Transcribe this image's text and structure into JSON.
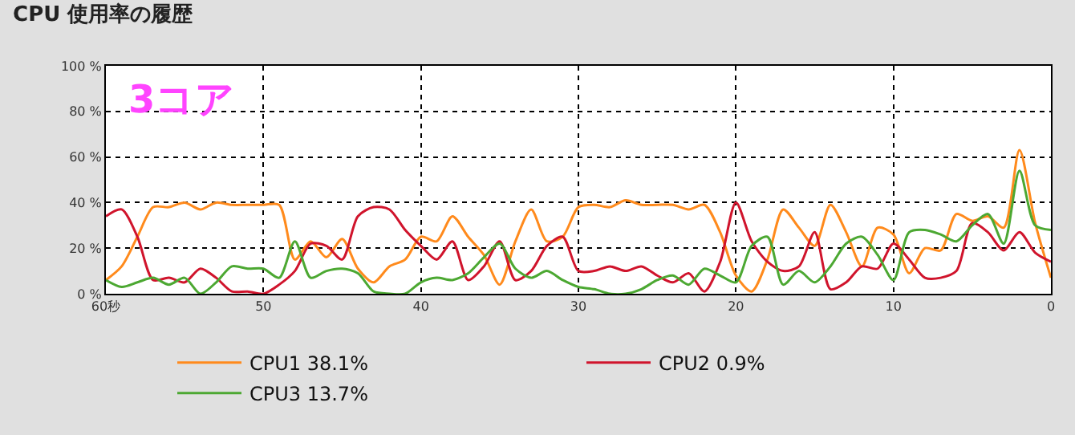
{
  "chart_data": {
    "type": "line",
    "title": "CPU 使用率の履歴",
    "x": [
      60,
      59,
      58,
      57,
      56,
      55,
      54,
      53,
      52,
      51,
      50,
      49,
      48,
      47,
      46,
      45,
      44,
      43,
      42,
      41,
      40,
      39,
      38,
      37,
      36,
      35,
      34,
      33,
      32,
      31,
      30,
      29,
      28,
      27,
      26,
      25,
      24,
      23,
      22,
      21,
      20,
      19,
      18,
      17,
      16,
      15,
      14,
      13,
      12,
      11,
      10,
      9,
      8,
      7,
      6,
      5,
      4,
      3,
      2,
      1,
      0
    ],
    "series": [
      {
        "name": "CPU1 38.1%",
        "color": "#ff8a1c",
        "values": [
          6,
          12,
          25,
          38,
          38,
          40,
          37,
          40,
          39,
          39,
          39,
          39,
          15,
          23,
          16,
          24,
          11,
          5,
          12,
          15,
          25,
          23,
          34,
          25,
          17,
          4,
          23,
          37,
          23,
          25,
          38,
          39,
          38,
          41,
          39,
          39,
          39,
          37,
          39,
          27,
          8,
          1,
          15,
          37,
          29,
          21,
          39,
          27,
          12,
          29,
          26,
          9,
          20,
          19,
          35,
          32,
          34,
          29,
          63,
          31,
          7
        ]
      },
      {
        "name": "CPU2 0.9%",
        "color": "#d0142c",
        "values": [
          34,
          37,
          25,
          6,
          7,
          5,
          11,
          7,
          1,
          1,
          0,
          4,
          10,
          22,
          21,
          15,
          34,
          38,
          37,
          28,
          21,
          15,
          23,
          6,
          12,
          23,
          6,
          10,
          21,
          25,
          10,
          10,
          12,
          10,
          12,
          8,
          5,
          9,
          1,
          14,
          40,
          23,
          14,
          10,
          12,
          27,
          2,
          5,
          12,
          11,
          22,
          15,
          7,
          7,
          10,
          31,
          27,
          19,
          27,
          18,
          14
        ]
      },
      {
        "name": "CPU3 13.7%",
        "color": "#4ca832",
        "values": [
          6,
          3,
          5,
          7,
          4,
          7,
          0,
          5,
          12,
          11,
          11,
          7,
          23,
          7,
          10,
          11,
          9,
          1,
          0,
          0,
          5,
          7,
          6,
          9,
          16,
          22,
          11,
          7,
          10,
          6,
          3,
          2,
          0,
          0,
          2,
          6,
          8,
          4,
          11,
          8,
          5,
          21,
          25,
          4,
          10,
          5,
          12,
          22,
          25,
          17,
          6,
          27,
          28,
          26,
          23,
          30,
          35,
          22,
          54,
          30,
          28
        ]
      }
    ],
    "xlim": [
      60,
      0
    ],
    "xticks": [
      {
        "value": 60,
        "label": "60秒"
      },
      50,
      40,
      30,
      20,
      10,
      0
    ],
    "ylim": [
      0,
      100
    ],
    "yticks": [
      {
        "value": 0,
        "label": "0 %"
      },
      {
        "value": 20,
        "label": "20 %"
      },
      {
        "value": 40,
        "label": "40 %"
      },
      {
        "value": 60,
        "label": "60 %"
      },
      {
        "value": 80,
        "label": "80 %"
      },
      {
        "value": 100,
        "label": "100 %"
      }
    ],
    "grid": true,
    "legend": "bottom",
    "marker": "none",
    "line_style": "solid",
    "annotations": [
      "3コア"
    ]
  }
}
